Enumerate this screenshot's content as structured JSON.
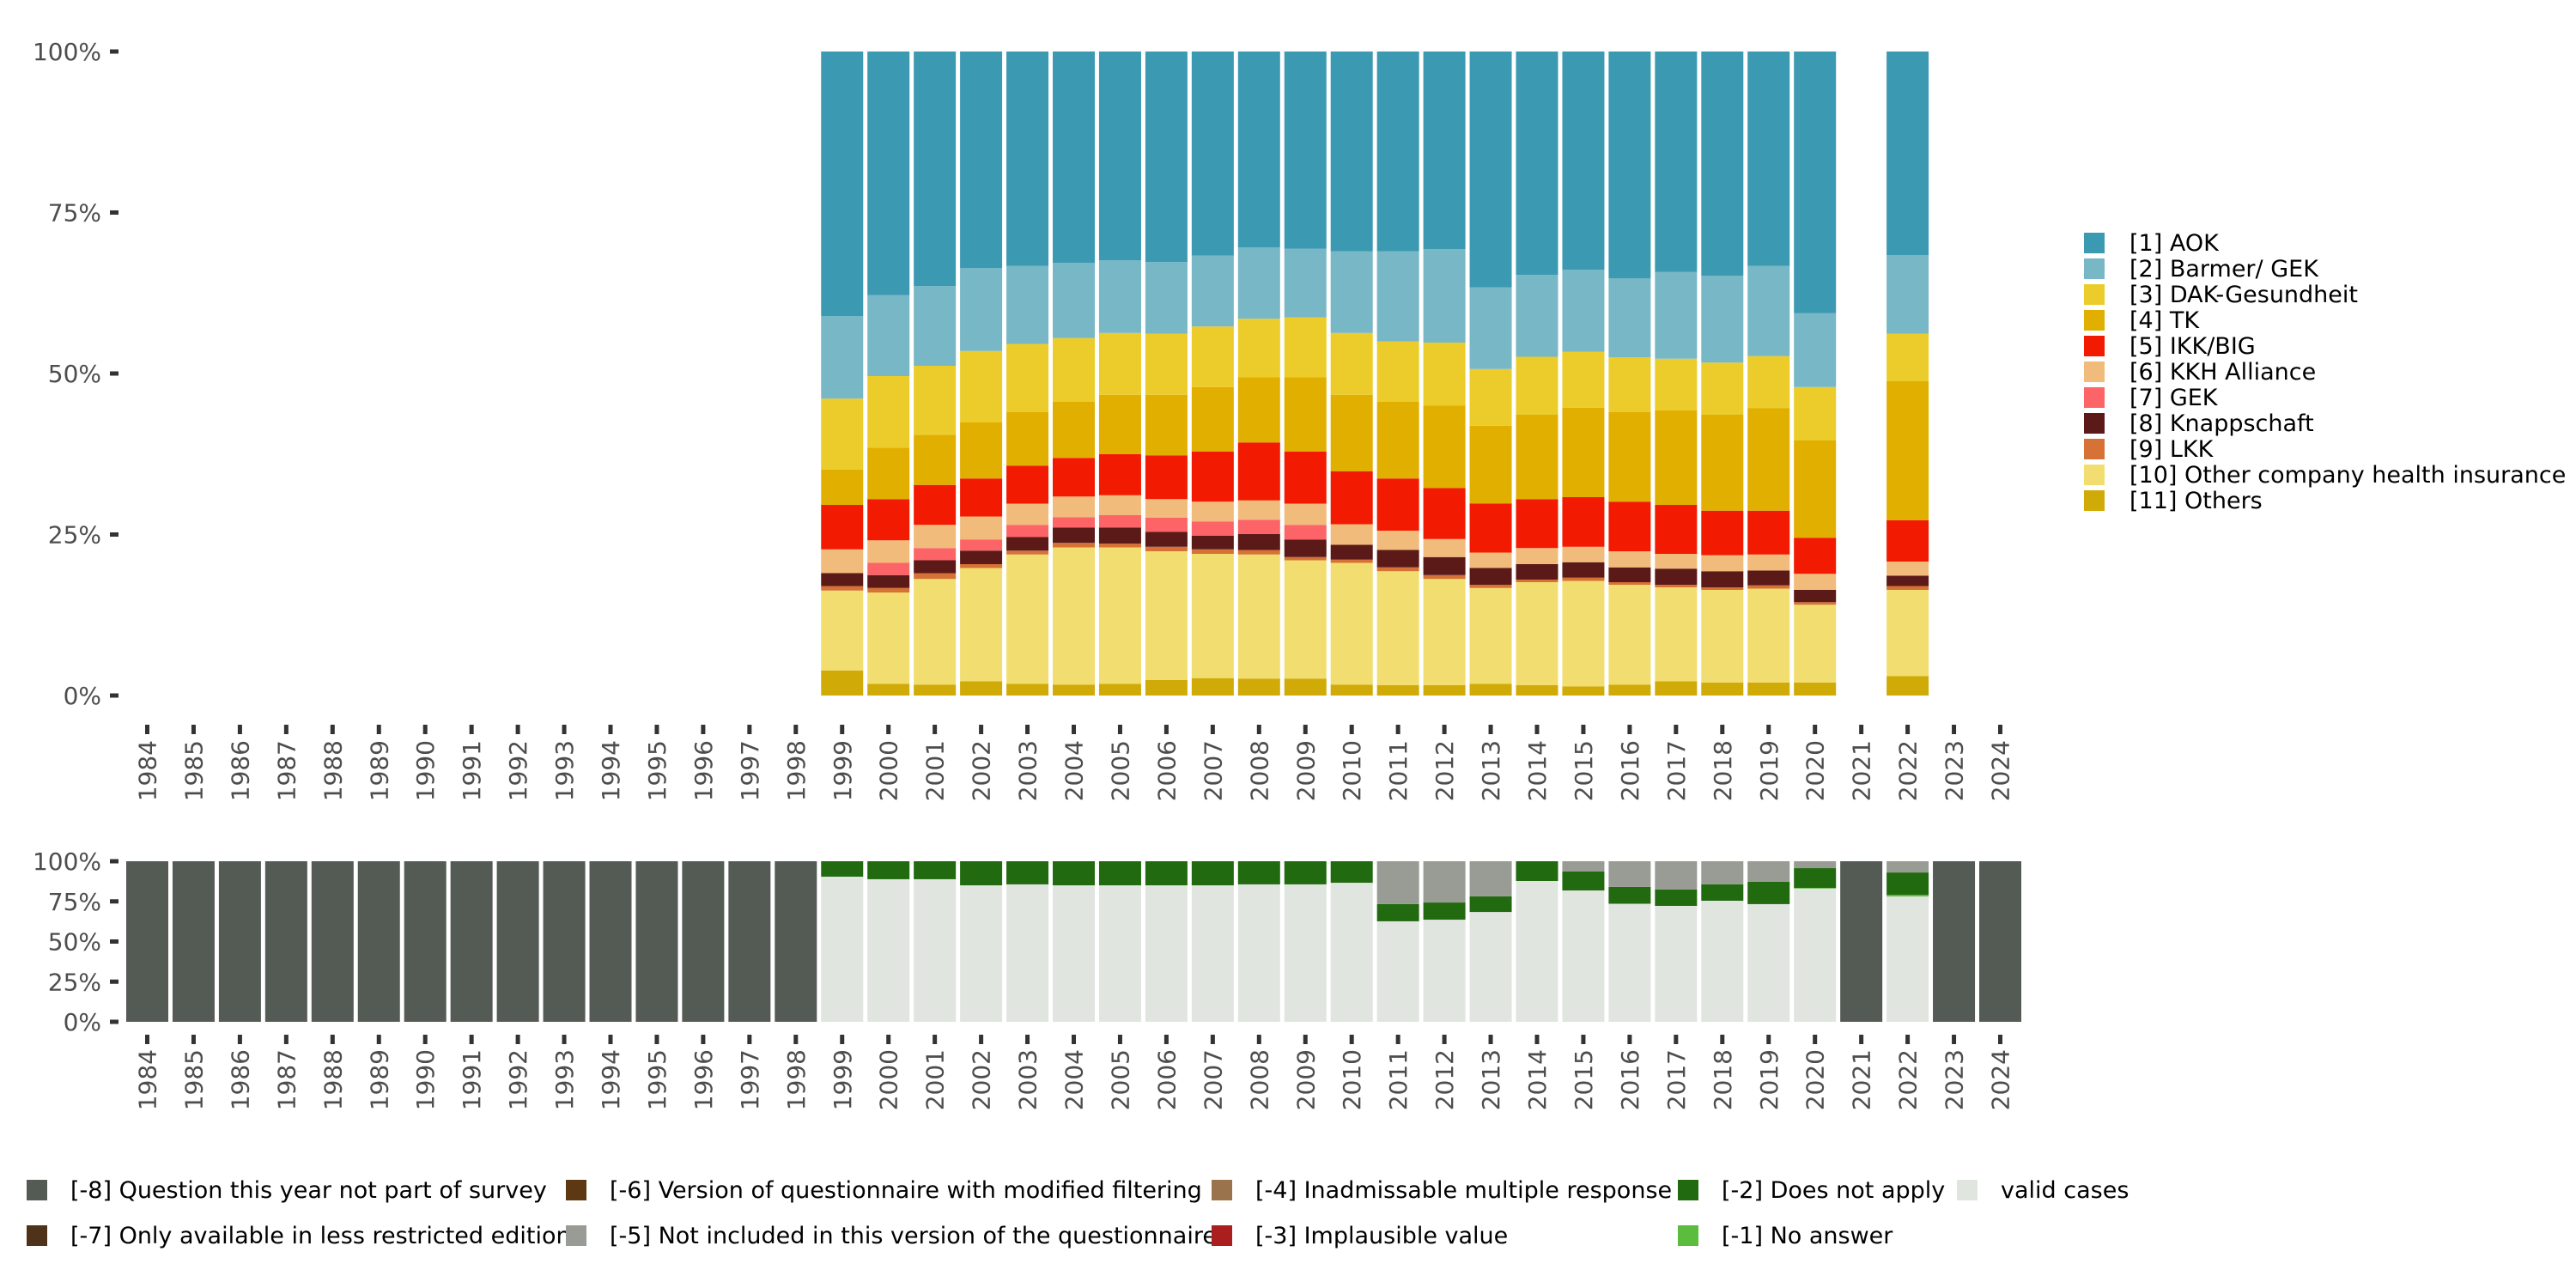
{
  "chart_data": [
    {
      "type": "bar",
      "stacked": true,
      "normalized": true,
      "title": "",
      "xlabel": "",
      "ylabel": "",
      "ylim": [
        0,
        100
      ],
      "yticks": [
        "0%",
        "25%",
        "50%",
        "75%",
        "100%"
      ],
      "categories": [
        "1984",
        "1985",
        "1986",
        "1987",
        "1988",
        "1989",
        "1990",
        "1991",
        "1992",
        "1993",
        "1994",
        "1995",
        "1996",
        "1997",
        "1998",
        "1999",
        "2000",
        "2001",
        "2002",
        "2003",
        "2004",
        "2005",
        "2006",
        "2007",
        "2008",
        "2009",
        "2010",
        "2011",
        "2012",
        "2013",
        "2014",
        "2015",
        "2016",
        "2017",
        "2018",
        "2019",
        "2020",
        "2021",
        "2022",
        "2023",
        "2024"
      ],
      "legend_position": "right",
      "stack_order_bottom_to_top": [
        "[11] Others",
        "[10] Other company health insurance",
        "[9] LKK",
        "[8] Knappschaft",
        "[7] GEK",
        "[6] KKH Alliance",
        "[5] IKK/BIG",
        "[4] TK",
        "[3] DAK-Gesundheit",
        "[2] Barmer/ GEK",
        "[1] AOK"
      ],
      "series": [
        {
          "name": "[1] AOK",
          "color": "#3c99b2",
          "values": {
            "1999": 41.1,
            "2000": 37.8,
            "2001": 36.4,
            "2002": 33.6,
            "2003": 33.3,
            "2004": 32.8,
            "2005": 32.4,
            "2006": 32.7,
            "2007": 31.7,
            "2008": 30.4,
            "2009": 30.6,
            "2010": 31.0,
            "2011": 31.0,
            "2012": 30.7,
            "2013": 36.6,
            "2014": 34.7,
            "2015": 33.9,
            "2016": 35.2,
            "2017": 34.2,
            "2018": 34.8,
            "2019": 33.3,
            "2020": 40.6,
            "2022": 31.6
          }
        },
        {
          "name": "[2] Barmer/ GEK",
          "color": "#78b7c5",
          "values": {
            "1999": 12.8,
            "2000": 12.6,
            "2001": 12.4,
            "2002": 12.9,
            "2003": 12.1,
            "2004": 11.7,
            "2005": 11.3,
            "2006": 11.1,
            "2007": 11.0,
            "2008": 11.1,
            "2009": 10.7,
            "2010": 12.7,
            "2011": 14.0,
            "2012": 14.5,
            "2013": 12.7,
            "2014": 12.7,
            "2015": 12.7,
            "2016": 12.3,
            "2017": 13.5,
            "2018": 13.5,
            "2019": 14.0,
            "2020": 11.5,
            "2022": 12.2
          }
        },
        {
          "name": "[3] DAK-Gesundheit",
          "color": "#ebcc2a",
          "values": {
            "1999": 11.0,
            "2000": 11.1,
            "2001": 10.7,
            "2002": 11.1,
            "2003": 10.6,
            "2004": 9.9,
            "2005": 9.6,
            "2006": 9.5,
            "2007": 9.4,
            "2008": 9.1,
            "2009": 9.3,
            "2010": 9.6,
            "2011": 9.4,
            "2012": 9.8,
            "2013": 8.8,
            "2014": 9.0,
            "2015": 8.7,
            "2016": 8.5,
            "2017": 8.0,
            "2018": 8.1,
            "2019": 8.1,
            "2020": 8.3,
            "2022": 7.4
          }
        },
        {
          "name": "[4] TK",
          "color": "#e1af00",
          "values": {
            "1999": 5.5,
            "2000": 8.0,
            "2001": 7.8,
            "2002": 8.7,
            "2003": 8.3,
            "2004": 8.7,
            "2005": 9.2,
            "2006": 9.4,
            "2007": 10.0,
            "2008": 10.1,
            "2009": 11.5,
            "2010": 11.9,
            "2011": 11.9,
            "2012": 12.8,
            "2013": 12.1,
            "2014": 13.1,
            "2015": 13.9,
            "2016": 13.9,
            "2017": 14.7,
            "2018": 14.9,
            "2019": 15.9,
            "2020": 15.1,
            "2022": 21.6
          }
        },
        {
          "name": "[5] IKK/BIG",
          "color": "#f21a00",
          "values": {
            "1999": 6.9,
            "2000": 6.4,
            "2001": 6.2,
            "2002": 5.9,
            "2003": 5.9,
            "2004": 6.0,
            "2005": 6.4,
            "2006": 6.8,
            "2007": 7.8,
            "2008": 9.0,
            "2009": 8.1,
            "2010": 8.2,
            "2011": 8.1,
            "2012": 7.9,
            "2013": 7.6,
            "2014": 7.6,
            "2015": 7.7,
            "2016": 7.7,
            "2017": 7.6,
            "2018": 6.9,
            "2019": 6.8,
            "2020": 5.6,
            "2022": 6.4
          }
        },
        {
          "name": "[6] KKH Alliance",
          "color": "#f1bb7b",
          "values": {
            "1999": 3.7,
            "2000": 3.5,
            "2001": 3.6,
            "2002": 3.6,
            "2003": 3.3,
            "2004": 3.2,
            "2005": 3.1,
            "2006": 2.9,
            "2007": 3.1,
            "2008": 3.0,
            "2009": 3.3,
            "2010": 3.2,
            "2011": 3.0,
            "2012": 2.8,
            "2013": 2.4,
            "2014": 2.5,
            "2015": 2.4,
            "2016": 2.5,
            "2017": 2.3,
            "2018": 2.5,
            "2019": 2.5,
            "2020": 2.5,
            "2022": 2.2
          }
        },
        {
          "name": "[7] GEK",
          "color": "#fd6467",
          "values": {
            "1999": 0,
            "2000": 1.9,
            "2001": 1.9,
            "2002": 1.7,
            "2003": 1.9,
            "2004": 1.6,
            "2005": 1.9,
            "2006": 2.2,
            "2007": 2.2,
            "2008": 2.2,
            "2009": 2.3,
            "2010": 0,
            "2011": 0,
            "2012": 0,
            "2013": 0,
            "2014": 0,
            "2015": 0,
            "2016": 0,
            "2017": 0,
            "2018": 0,
            "2019": 0,
            "2020": 0,
            "2022": 0
          }
        },
        {
          "name": "[8] Knappschaft",
          "color": "#5b1a18",
          "values": {
            "1999": 2.0,
            "2000": 2.0,
            "2001": 2.0,
            "2002": 2.1,
            "2003": 2.1,
            "2004": 2.4,
            "2005": 2.5,
            "2006": 2.3,
            "2007": 2.1,
            "2008": 2.5,
            "2009": 2.7,
            "2010": 2.3,
            "2011": 2.7,
            "2012": 2.8,
            "2013": 2.6,
            "2014": 2.4,
            "2015": 2.4,
            "2016": 2.3,
            "2017": 2.5,
            "2018": 2.5,
            "2019": 2.3,
            "2020": 1.9,
            "2022": 1.6
          }
        },
        {
          "name": "[9] LKK",
          "color": "#d67236",
          "values": {
            "1999": 0.7,
            "2000": 0.7,
            "2001": 0.9,
            "2002": 0.6,
            "2003": 0.6,
            "2004": 0.7,
            "2005": 0.6,
            "2006": 0.7,
            "2007": 0.7,
            "2008": 0.7,
            "2009": 0.5,
            "2010": 0.5,
            "2011": 0.6,
            "2012": 0.6,
            "2013": 0.5,
            "2014": 0.4,
            "2015": 0.5,
            "2016": 0.4,
            "2017": 0.4,
            "2018": 0.4,
            "2019": 0.5,
            "2020": 0.4,
            "2022": 0.6
          }
        },
        {
          "name": "[10] Other company health insurance",
          "color": "#f2de70",
          "values": {
            "1999": 12.4,
            "2000": 14.2,
            "2001": 16.4,
            "2002": 17.6,
            "2003": 20.1,
            "2004": 21.3,
            "2005": 21.2,
            "2006": 20.0,
            "2007": 19.3,
            "2008": 19.3,
            "2009": 18.4,
            "2010": 18.9,
            "2011": 17.7,
            "2012": 16.5,
            "2013": 14.9,
            "2014": 16.0,
            "2015": 16.4,
            "2016": 15.5,
            "2017": 14.6,
            "2018": 14.4,
            "2019": 14.6,
            "2020": 12.1,
            "2022": 13.4
          }
        },
        {
          "name": "[11] Others",
          "color": "#d0ab07",
          "values": {
            "1999": 3.9,
            "2000": 1.8,
            "2001": 1.7,
            "2002": 2.2,
            "2003": 1.8,
            "2004": 1.7,
            "2005": 1.8,
            "2006": 2.4,
            "2007": 2.7,
            "2008": 2.6,
            "2009": 2.6,
            "2010": 1.7,
            "2011": 1.6,
            "2012": 1.6,
            "2013": 1.8,
            "2014": 1.6,
            "2015": 1.4,
            "2016": 1.7,
            "2017": 2.2,
            "2018": 2.0,
            "2019": 2.0,
            "2020": 2.0,
            "2022": 3.0
          }
        }
      ]
    },
    {
      "type": "bar",
      "stacked": true,
      "normalized": true,
      "title": "",
      "xlabel": "",
      "ylabel": "",
      "ylim": [
        0,
        100
      ],
      "yticks": [
        "0%",
        "25%",
        "50%",
        "75%",
        "100%"
      ],
      "categories": [
        "1984",
        "1985",
        "1986",
        "1987",
        "1988",
        "1989",
        "1990",
        "1991",
        "1992",
        "1993",
        "1994",
        "1995",
        "1996",
        "1997",
        "1998",
        "1999",
        "2000",
        "2001",
        "2002",
        "2003",
        "2004",
        "2005",
        "2006",
        "2007",
        "2008",
        "2009",
        "2010",
        "2011",
        "2012",
        "2013",
        "2014",
        "2015",
        "2016",
        "2017",
        "2018",
        "2019",
        "2020",
        "2021",
        "2022",
        "2023",
        "2024"
      ],
      "legend_position": "bottom",
      "stack_order_bottom_to_top": [
        "valid cases",
        "[-1] No answer",
        "[-2] Does not apply",
        "[-3] Implausible value",
        "[-4] Inadmissable multiple response",
        "[-5] Not included in this version of the questionnaire",
        "[-6] Version of questionnaire with modified filtering",
        "[-7] Only available in less restricted edition",
        "[-8] Question this year not part of survey"
      ],
      "series": [
        {
          "name": "valid cases",
          "color": "#e0e5e0",
          "values": {
            "1999": 90.4,
            "2000": 88.8,
            "2001": 88.8,
            "2002": 85.0,
            "2003": 85.6,
            "2004": 85.0,
            "2005": 85.0,
            "2006": 85.0,
            "2007": 85.0,
            "2008": 85.6,
            "2009": 85.6,
            "2010": 86.6,
            "2011": 62.6,
            "2012": 63.6,
            "2013": 68.4,
            "2014": 87.7,
            "2015": 81.8,
            "2016": 73.3,
            "2017": 72.2,
            "2018": 75.4,
            "2019": 73.3,
            "2020": 83.0,
            "2022": 78.1
          }
        },
        {
          "name": "[-1] No answer",
          "color": "#5bbc3d",
          "values": {
            "2016": 0.5,
            "2020": 0.4,
            "2022": 1.0
          }
        },
        {
          "name": "[-2] Does not apply",
          "color": "#216a0f",
          "values": {
            "1999": 9.6,
            "2000": 11.2,
            "2001": 11.2,
            "2002": 15.0,
            "2003": 14.4,
            "2004": 15.0,
            "2005": 15.0,
            "2006": 15.0,
            "2007": 15.0,
            "2008": 14.4,
            "2009": 14.4,
            "2010": 13.4,
            "2011": 10.7,
            "2012": 10.7,
            "2013": 9.7,
            "2014": 12.3,
            "2015": 11.8,
            "2016": 10.2,
            "2017": 10.2,
            "2018": 10.2,
            "2019": 13.9,
            "2020": 12.3,
            "2022": 13.9
          }
        },
        {
          "name": "[-3] Implausible value",
          "color": "#aa1e1e",
          "values": {}
        },
        {
          "name": "[-4] Inadmissable multiple response",
          "color": "#9a734c",
          "values": {}
        },
        {
          "name": "[-5] Not included in this version of the questionnaire",
          "color": "#989c94",
          "values": {
            "2011": 26.7,
            "2012": 25.7,
            "2013": 21.9,
            "2015": 6.4,
            "2016": 16.0,
            "2017": 17.6,
            "2018": 14.4,
            "2019": 12.8,
            "2020": 4.3,
            "2022": 7.0
          }
        },
        {
          "name": "[-6] Version of questionnaire with modified filtering",
          "color": "#5c3813",
          "values": {}
        },
        {
          "name": "[-7] Only available in less restricted edition",
          "color": "#4e321a",
          "values": {}
        },
        {
          "name": "[-8] Question this year not part of survey",
          "color": "#545a54",
          "values": {
            "1984": 100,
            "1985": 100,
            "1986": 100,
            "1987": 100,
            "1988": 100,
            "1989": 100,
            "1990": 100,
            "1991": 100,
            "1992": 100,
            "1993": 100,
            "1994": 100,
            "1995": 100,
            "1996": 100,
            "1997": 100,
            "1998": 100,
            "2021": 100,
            "2023": 100,
            "2024": 100
          }
        }
      ]
    }
  ],
  "top_legend": [
    {
      "label": "[1] AOK",
      "color": "#3c99b2"
    },
    {
      "label": "[2] Barmer/ GEK",
      "color": "#78b7c5"
    },
    {
      "label": "[3] DAK-Gesundheit",
      "color": "#ebcc2a"
    },
    {
      "label": "[4] TK",
      "color": "#e1af00"
    },
    {
      "label": "[5] IKK/BIG",
      "color": "#f21a00"
    },
    {
      "label": "[6] KKH Alliance",
      "color": "#f1bb7b"
    },
    {
      "label": "[7] GEK",
      "color": "#fd6467"
    },
    {
      "label": "[8] Knappschaft",
      "color": "#5b1a18"
    },
    {
      "label": "[9] LKK",
      "color": "#d67236"
    },
    {
      "label": "[10] Other company health insurance",
      "color": "#f2de70"
    },
    {
      "label": "[11] Others",
      "color": "#d0ab07"
    }
  ],
  "bottom_legend": [
    {
      "label": "[-8] Question this year not part of survey",
      "color": "#545a54"
    },
    {
      "label": "[-7] Only available in less restricted edition",
      "color": "#4e321a"
    },
    {
      "label": "[-6] Version of questionnaire with modified filtering",
      "color": "#5c3813"
    },
    {
      "label": "[-5] Not included in this version of the questionnaire",
      "color": "#989c94"
    },
    {
      "label": "[-4] Inadmissable multiple response",
      "color": "#9a734c"
    },
    {
      "label": "[-3] Implausible value",
      "color": "#aa1e1e"
    },
    {
      "label": "[-2] Does not apply",
      "color": "#216a0f"
    },
    {
      "label": "[-1] No answer",
      "color": "#5bbc3d"
    },
    {
      "label": "valid cases",
      "color": "#e0e5e0"
    }
  ]
}
